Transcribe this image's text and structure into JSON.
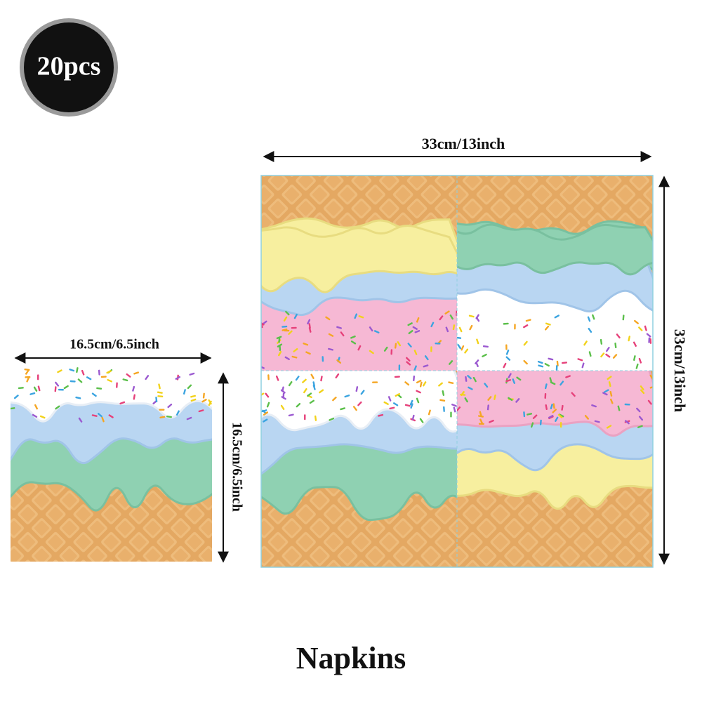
{
  "badge": {
    "text": "20pcs"
  },
  "small_napkin": {
    "width_label": "16.5cm/6.5inch",
    "height_label": "16.5cm/6.5inch"
  },
  "large_napkin": {
    "width_label": "33cm/13inch",
    "height_label": "33cm/13inch"
  },
  "caption": "Napkins"
}
